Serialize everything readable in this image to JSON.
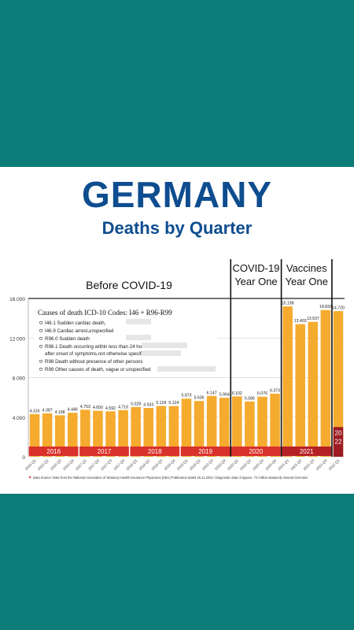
{
  "header": {
    "title": "GERMANY",
    "subtitle": "Deaths by Quarter"
  },
  "colors": {
    "teal": "#0c7c78",
    "title_blue": "#0e4d8f",
    "bar_orange": "#f5ab2e",
    "year_red": "#d9312b",
    "year_2021_red": "#b52026",
    "year_2022_dark": "#9c1c22"
  },
  "chart_data": {
    "type": "bar",
    "title": "",
    "xlabel": "",
    "ylabel": "",
    "ylim": [
      0,
      16000
    ],
    "yticks": [
      "0",
      "4.000",
      "8.000",
      "12.000",
      "16.000"
    ],
    "grid": true,
    "categories": [
      "2016 Q1",
      "2016 Q2",
      "2016 Q3",
      "2016 Q4",
      "2017 Q1",
      "2017 Q2",
      "2017 Q3",
      "2017 Q4",
      "2018 Q1",
      "2018 Q2",
      "2018 Q3",
      "2018 Q4",
      "2019 Q1",
      "2019 Q2",
      "2019 Q3",
      "2019 Q4",
      "2020 Q1",
      "2020 Q2",
      "2020 Q3",
      "2020 Q4",
      "2021 Q1",
      "2021 Q2",
      "2021 Q3",
      "2021 Q4",
      "2022 Q1"
    ],
    "values": [
      4316,
      4387,
      4188,
      4446,
      4753,
      4650,
      4592,
      4716,
      5028,
      4933,
      5128,
      5124,
      5873,
      5636,
      6147,
      5964,
      6102,
      5586,
      6076,
      6373,
      15198,
      13403,
      13637,
      14830,
      14720
    ],
    "value_labels": [
      "4.316",
      "4.387",
      "4.188",
      "4.446",
      "4.753",
      "4.650",
      "4.592",
      "4.716",
      "5.028",
      "4.933",
      "5.128",
      "5.124",
      "5.873",
      "5.636",
      "6.147",
      "5.964",
      "6.102",
      "5.586",
      "6.076",
      "6.373",
      "15.198",
      "13.403",
      "13.637",
      "14.830",
      "14.720"
    ],
    "year_labels": [
      "2016",
      "2017",
      "2018",
      "2019",
      "2020",
      "2021"
    ],
    "year_2022_label": [
      "20",
      "22"
    ],
    "annotations": {
      "before": "Before COVID-19",
      "covid_line1": "COVID-19",
      "covid_line2": "Year One",
      "vacc_line1": "Vaccines",
      "vacc_line2": "Year One"
    },
    "legend": {
      "title": "Causes of death ICD-10 Codes: I46 + R96-R99",
      "items": [
        "I46.1 Sudden cardiac death,",
        "I46.9 Cardiac arrest,unspecified",
        "R96.0 Sudden death",
        "R96.1 Death occurring within less than 24 hours",
        "after onset of symptoms,not otherwise specified",
        "R98 Death without presence of other persons",
        "R99 Other causes of death, vague or unspecified"
      ]
    },
    "footnote": "Data Source: Data from the National Association of Statutory Health Insurance Physicians (KBV) Publication dated 29.11.2022 / Diagnostic data of approx. 72 million statutorily insured Germans"
  }
}
